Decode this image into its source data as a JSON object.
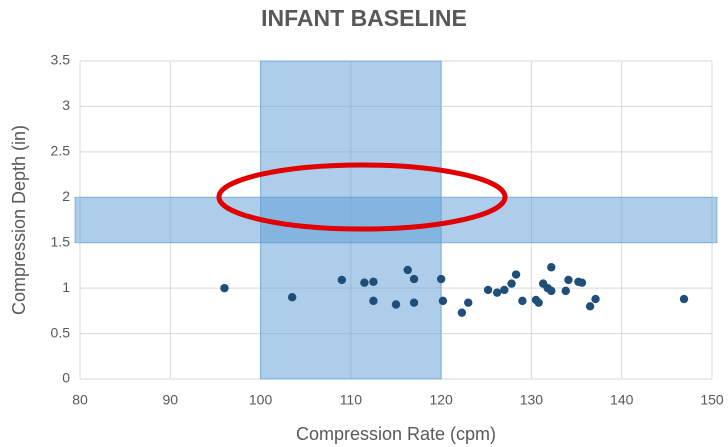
{
  "chart_data": {
    "type": "scatter",
    "title": "INFANT BASELINE",
    "x_label": "Compression Rate (cpm)",
    "y_label": "Compression Depth (in)",
    "series": [
      {
        "color": "#1f4e79",
        "x": [
          96,
          103.5,
          109,
          111.5,
          112.5,
          112.5,
          115,
          116.3,
          117,
          117,
          120,
          120.2,
          122.3,
          123,
          125.2,
          126.2,
          127,
          127.8,
          128.3,
          129,
          130.5,
          130.8,
          131.3,
          131.8,
          132.2,
          132.2,
          133.8,
          134.1,
          135.2,
          135.6,
          136.5,
          137.1,
          146.9
        ],
        "values": [
          1.0,
          0.9,
          1.09,
          1.06,
          1.07,
          0.86,
          0.82,
          1.2,
          1.1,
          0.84,
          1.1,
          0.86,
          0.73,
          0.84,
          0.98,
          0.95,
          0.98,
          1.05,
          1.15,
          0.86,
          0.87,
          0.84,
          1.05,
          1.0,
          1.23,
          0.97,
          0.97,
          1.09,
          1.07,
          1.06,
          0.8,
          0.88,
          0.88
        ]
      }
    ],
    "x_band": [
      100,
      120
    ],
    "y_band": [
      1.5,
      2
    ],
    "band_color": "#5b9bd5",
    "xlim": [
      80,
      150
    ],
    "xticks": [
      80,
      90,
      100,
      110,
      120,
      130,
      140,
      150
    ],
    "ylim": [
      0,
      3.5
    ],
    "yticks": [
      0,
      0.5,
      1,
      1.5,
      2,
      2.5,
      3,
      3.5
    ],
    "grid": true
  }
}
